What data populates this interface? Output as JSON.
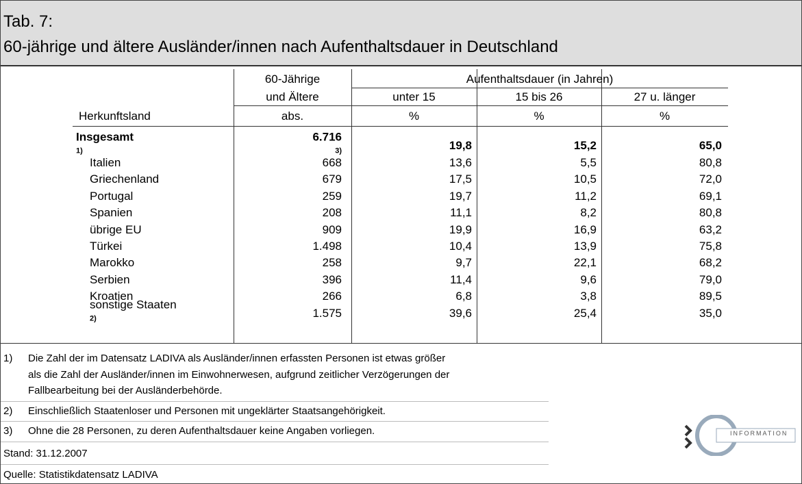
{
  "title": {
    "line1": "Tab. 7:",
    "line2": "60-jährige und ältere Ausländer/innen nach Aufenthaltsdauer in Deutschland"
  },
  "table": {
    "header": {
      "col1_line1": "60-Jährige",
      "col1_line2": "und Ältere",
      "group": "Aufenthaltsdauer (in Jahren)",
      "sub": [
        "unter 15",
        "15 bis 26",
        "27 u. länger"
      ],
      "row_label": "Herkunftsland",
      "units": [
        "abs.",
        "%",
        "%",
        "%"
      ]
    },
    "rows": [
      {
        "label": "Insgesamt",
        "note": "1)",
        "cells": [
          "6.716",
          "19,8",
          "15,2",
          "65,0"
        ],
        "cell_note": "3)"
      },
      {
        "label": "Italien",
        "cells": [
          "668",
          "13,6",
          "5,5",
          "80,8"
        ]
      },
      {
        "label": "Griechenland",
        "cells": [
          "679",
          "17,5",
          "10,5",
          "72,0"
        ]
      },
      {
        "label": "Portugal",
        "cells": [
          "259",
          "19,7",
          "11,2",
          "69,1"
        ]
      },
      {
        "label": "Spanien",
        "cells": [
          "208",
          "11,1",
          "8,2",
          "80,8"
        ]
      },
      {
        "label": "übrige EU",
        "cells": [
          "909",
          "19,9",
          "16,9",
          "63,2"
        ]
      },
      {
        "label": "Türkei",
        "cells": [
          "1.498",
          "10,4",
          "13,9",
          "75,8"
        ]
      },
      {
        "label": "Marokko",
        "cells": [
          "258",
          "9,7",
          "22,1",
          "68,2"
        ]
      },
      {
        "label": "Serbien",
        "cells": [
          "396",
          "11,4",
          "9,6",
          "79,0"
        ]
      },
      {
        "label": "Kroatien",
        "cells": [
          "266",
          "6,8",
          "3,8",
          "89,5"
        ]
      },
      {
        "label": "sonstige Staaten",
        "note": "2)",
        "cells": [
          "1.575",
          "39,6",
          "25,4",
          "35,0"
        ]
      }
    ]
  },
  "footnotes": [
    {
      "marker": "1)",
      "lines": [
        "Die Zahl der im Datensatz LADIVA als Ausländer/innen erfassten Personen ist etwas größer",
        "als die Zahl der Ausländer/innen im Einwohnerwesen, aufgrund zeitlicher Verzögerungen der",
        "Fallbearbeitung bei der Ausländerbehörde."
      ]
    },
    {
      "marker": "2)",
      "lines": [
        "Einschließlich Staatenloser und Personen mit ungeklärter Staatsangehörigkeit."
      ]
    },
    {
      "marker": "3)",
      "lines": [
        "Ohne die 28 Personen, zu deren Aufenthaltsdauer keine Angaben vorliegen."
      ]
    }
  ],
  "stand": "Stand: 31.12.2007",
  "source": "Quelle: Statistikdatensatz LADIVA",
  "logo": "INFORMATION"
}
